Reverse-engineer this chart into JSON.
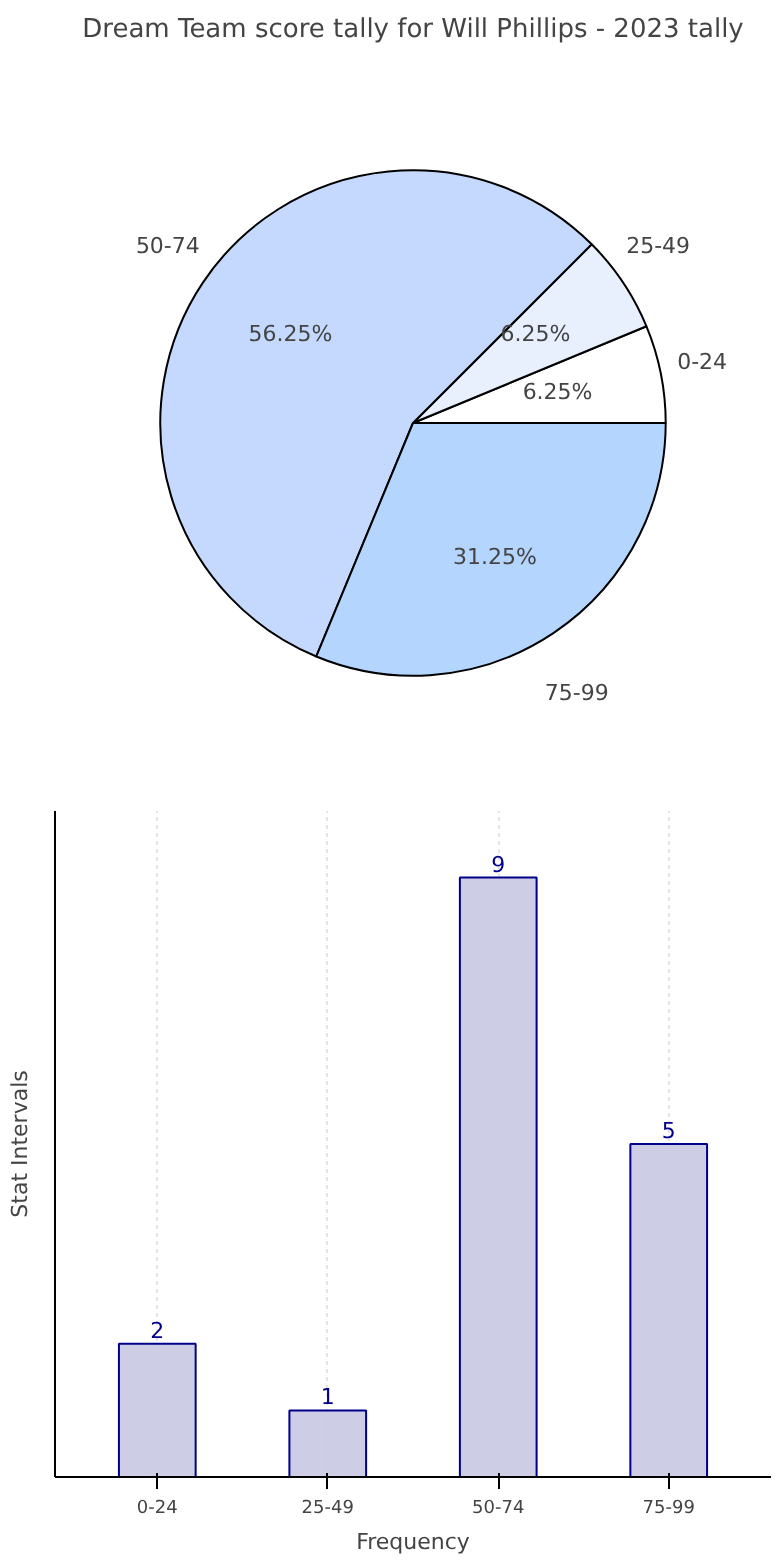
{
  "chart_data": [
    {
      "type": "pie",
      "title": "Dream Team score tally for Will Phillips - 2023 tally",
      "categories": [
        "0-24",
        "25-49",
        "50-74",
        "75-99"
      ],
      "values": [
        6.25,
        6.25,
        56.25,
        31.25
      ],
      "colors": [
        "#ffffff",
        "#e8effd",
        "#c5d9fe",
        "#b3d5fe"
      ],
      "value_labels": [
        "6.25%",
        "6.25%",
        "56.25%",
        "31.25%"
      ]
    },
    {
      "type": "bar",
      "categories": [
        "0-24",
        "25-49",
        "50-74",
        "75-99"
      ],
      "values": [
        2,
        1,
        9,
        5
      ],
      "color": "#c8c8e2",
      "xlabel": "Frequency",
      "ylabel": "Stat Intervals",
      "ylim": [
        0,
        10
      ],
      "tick_labels": "x",
      "data_labels": true,
      "grid": "x"
    }
  ]
}
